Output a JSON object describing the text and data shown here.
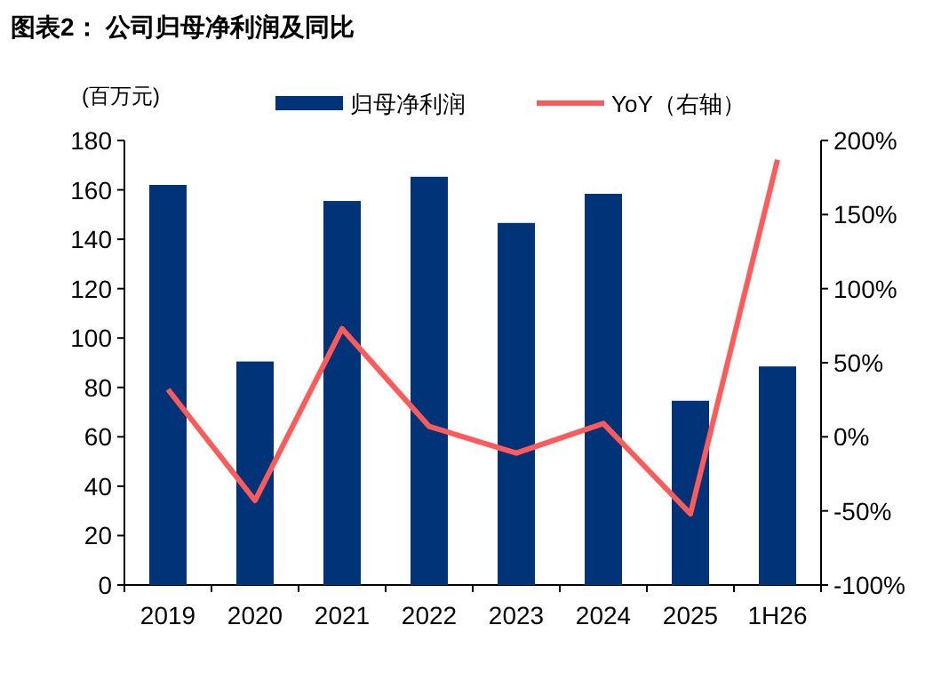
{
  "chart_data": {
    "type": "bar",
    "title": "图表2：  公司归母净利润及同比",
    "ylabel": "(百万元)",
    "categories": [
      "2019",
      "2020",
      "2021",
      "2022",
      "2023",
      "2024",
      "2025",
      "1H26"
    ],
    "series": [
      {
        "name": "归母净利润",
        "color": "#003378",
        "values": [
          162,
          90.5,
          155.5,
          165.3,
          146.6,
          158.4,
          74.6,
          88.5
        ]
      },
      {
        "name": "YoY（右轴）",
        "type": "line",
        "axis": "y2",
        "color": "#ff5b5b",
        "values": [
          32,
          -43,
          73,
          7,
          -11,
          9,
          -52,
          187
        ]
      }
    ],
    "ylim": [
      0,
      180
    ],
    "yticks": [
      0,
      20,
      40,
      60,
      80,
      100,
      120,
      140,
      160,
      180
    ],
    "y2lim": [
      -100,
      200
    ],
    "y2ticks": [
      {
        "value": -100,
        "label": "-100%"
      },
      {
        "value": -50,
        "label": "-50%"
      },
      {
        "value": 0,
        "label": "0%"
      },
      {
        "value": 50,
        "label": "50%"
      },
      {
        "value": 100,
        "label": "100%"
      },
      {
        "value": 150,
        "label": "150%"
      },
      {
        "value": 200,
        "label": "200%"
      }
    ],
    "legend": "top",
    "grid": false
  }
}
